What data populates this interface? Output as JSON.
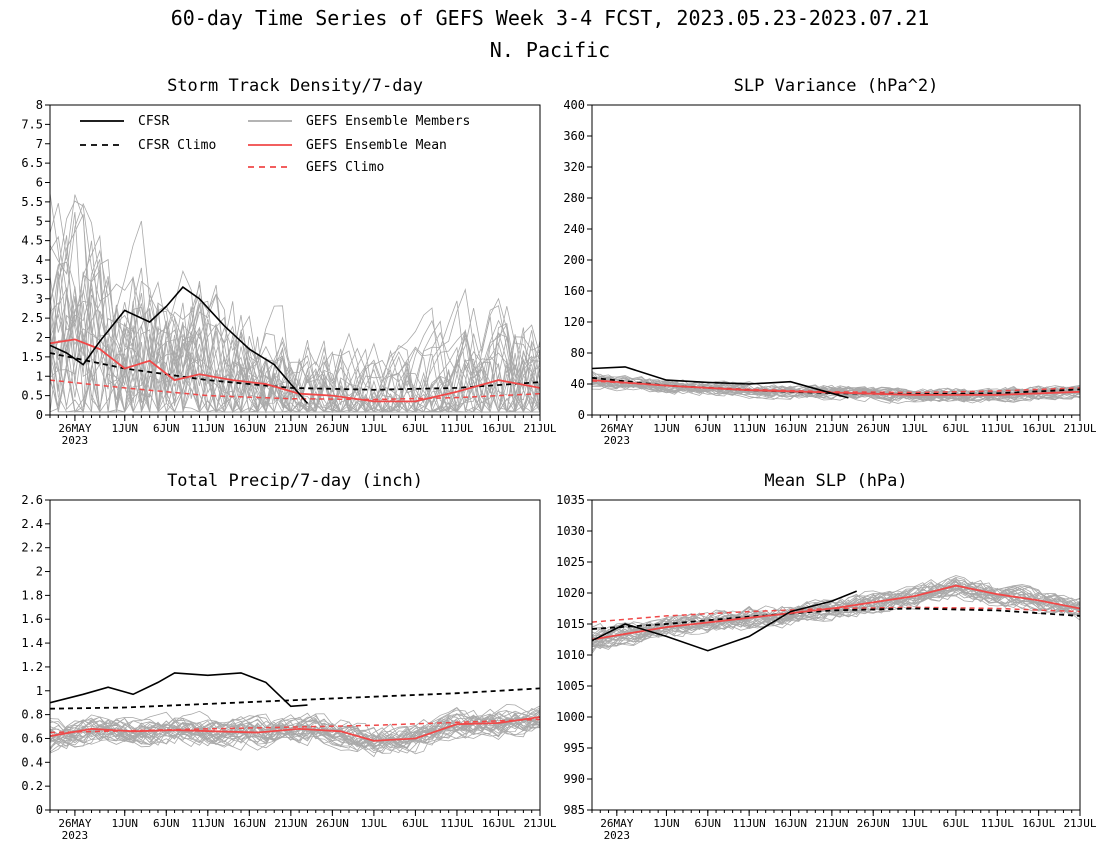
{
  "figure": {
    "title_line1": "60-day Time Series of GEFS Week 3-4 FCST, 2023.05.23-2023.07.21",
    "title_line2": "N. Pacific",
    "colors": {
      "obs": "#000000",
      "members": "#a9a9a9",
      "ens_mean": "#f04848"
    },
    "x_ticks": [
      "26MAY",
      "1JUN",
      "6JUN",
      "11JUN",
      "16JUN",
      "21JUN",
      "26JUN",
      "1JUL",
      "6JUL",
      "11JUL",
      "16JUL",
      "21JUL"
    ],
    "x_year_label": "2023",
    "x_range": [
      "2023-05-23",
      "2023-07-21"
    ],
    "legend": {
      "cfsr": "CFSR",
      "cfsr_climo": "CFSR Climo",
      "gefs_members": "GEFS Ensemble Members",
      "gefs_mean": "GEFS Ensemble Mean",
      "gefs_climo": "GEFS Climo"
    }
  },
  "chart_data": [
    {
      "type": "line",
      "title": "Storm Track Density/7-day",
      "ylim": [
        0,
        8
      ],
      "y_ticks": [
        "0",
        "0.5",
        "1",
        "1.5",
        "2",
        "2.5",
        "3",
        "3.5",
        "4",
        "4.5",
        "5",
        "5.5",
        "6",
        "6.5",
        "7",
        "7.5",
        "8"
      ],
      "legend_position": "top-left",
      "cfsr": {
        "x": [
          "2023-05-23",
          "2023-05-25",
          "2023-05-27",
          "2023-05-29",
          "2023-06-01",
          "2023-06-04",
          "2023-06-06",
          "2023-06-08",
          "2023-06-10",
          "2023-06-13",
          "2023-06-16",
          "2023-06-19",
          "2023-06-21",
          "2023-06-23"
        ],
        "y": [
          1.8,
          1.6,
          1.3,
          1.9,
          2.7,
          2.4,
          2.8,
          3.3,
          3.0,
          2.3,
          1.7,
          1.3,
          0.8,
          0.3
        ]
      },
      "cfsr_climo": {
        "x": [
          "2023-05-23",
          "2023-06-01",
          "2023-06-11",
          "2023-06-21",
          "2023-07-01",
          "2023-07-11",
          "2023-07-21"
        ],
        "y": [
          1.6,
          1.2,
          0.9,
          0.7,
          0.65,
          0.7,
          0.85
        ]
      },
      "gefs_mean": {
        "x": [
          "2023-05-23",
          "2023-05-26",
          "2023-05-29",
          "2023-06-01",
          "2023-06-04",
          "2023-06-07",
          "2023-06-10",
          "2023-06-14",
          "2023-06-18",
          "2023-06-22",
          "2023-06-26",
          "2023-07-01",
          "2023-07-06",
          "2023-07-11",
          "2023-07-16",
          "2023-07-21"
        ],
        "y": [
          1.85,
          1.95,
          1.7,
          1.2,
          1.4,
          0.9,
          1.05,
          0.9,
          0.8,
          0.55,
          0.5,
          0.35,
          0.35,
          0.6,
          0.9,
          0.7
        ]
      },
      "gefs_climo": {
        "x": [
          "2023-05-23",
          "2023-06-01",
          "2023-06-11",
          "2023-06-21",
          "2023-07-01",
          "2023-07-11",
          "2023-07-21"
        ],
        "y": [
          0.9,
          0.7,
          0.5,
          0.42,
          0.4,
          0.45,
          0.55
        ]
      }
    },
    {
      "type": "line",
      "title": "SLP Variance (hPa^2)",
      "ylim": [
        0,
        400
      ],
      "y_ticks": [
        "0",
        "40",
        "80",
        "120",
        "160",
        "200",
        "240",
        "280",
        "320",
        "360",
        "400"
      ],
      "cfsr": {
        "x": [
          "2023-05-23",
          "2023-05-27",
          "2023-06-01",
          "2023-06-06",
          "2023-06-11",
          "2023-06-16",
          "2023-06-21",
          "2023-06-23"
        ],
        "y": [
          60,
          62,
          45,
          42,
          40,
          43,
          28,
          22
        ]
      },
      "cfsr_climo": {
        "x": [
          "2023-05-23",
          "2023-06-01",
          "2023-06-11",
          "2023-06-21",
          "2023-07-01",
          "2023-07-11",
          "2023-07-21"
        ],
        "y": [
          48,
          38,
          32,
          28,
          27,
          28,
          33
        ]
      },
      "gefs_mean": {
        "x": [
          "2023-05-23",
          "2023-06-01",
          "2023-06-11",
          "2023-06-21",
          "2023-07-01",
          "2023-07-11",
          "2023-07-21"
        ],
        "y": [
          45,
          38,
          32,
          29,
          26,
          26,
          30
        ]
      },
      "gefs_climo": {
        "x": [
          "2023-05-23",
          "2023-06-01",
          "2023-06-11",
          "2023-06-21",
          "2023-07-01",
          "2023-07-11",
          "2023-07-21"
        ],
        "y": [
          44,
          38,
          33,
          30,
          29,
          31,
          35
        ]
      }
    },
    {
      "type": "line",
      "title": "Total Precip/7-day (inch)",
      "ylim": [
        0,
        2.6
      ],
      "y_ticks": [
        "0",
        "0.2",
        "0.4",
        "0.6",
        "0.8",
        "1",
        "1.2",
        "1.4",
        "1.6",
        "1.8",
        "2",
        "2.2",
        "2.4",
        "2.6"
      ],
      "cfsr": {
        "x": [
          "2023-05-23",
          "2023-05-27",
          "2023-05-30",
          "2023-06-02",
          "2023-06-05",
          "2023-06-07",
          "2023-06-11",
          "2023-06-15",
          "2023-06-18",
          "2023-06-21",
          "2023-06-23"
        ],
        "y": [
          0.9,
          0.97,
          1.03,
          0.97,
          1.07,
          1.15,
          1.13,
          1.15,
          1.07,
          0.87,
          0.88
        ]
      },
      "cfsr_climo": {
        "x": [
          "2023-05-23",
          "2023-06-01",
          "2023-06-11",
          "2023-06-21",
          "2023-07-01",
          "2023-07-11",
          "2023-07-21"
        ],
        "y": [
          0.85,
          0.86,
          0.89,
          0.92,
          0.95,
          0.98,
          1.02
        ]
      },
      "gefs_mean": {
        "x": [
          "2023-05-23",
          "2023-05-28",
          "2023-06-02",
          "2023-06-07",
          "2023-06-12",
          "2023-06-17",
          "2023-06-22",
          "2023-06-27",
          "2023-07-01",
          "2023-07-06",
          "2023-07-11",
          "2023-07-16",
          "2023-07-21"
        ],
        "y": [
          0.62,
          0.68,
          0.66,
          0.67,
          0.66,
          0.65,
          0.68,
          0.66,
          0.58,
          0.6,
          0.72,
          0.73,
          0.78
        ]
      },
      "gefs_climo": {
        "x": [
          "2023-05-23",
          "2023-06-11",
          "2023-07-01",
          "2023-07-21"
        ],
        "y": [
          0.65,
          0.68,
          0.71,
          0.76
        ]
      }
    },
    {
      "type": "line",
      "title": "Mean SLP (hPa)",
      "ylim": [
        985,
        1035
      ],
      "y_ticks": [
        "985",
        "990",
        "995",
        "1000",
        "1005",
        "1010",
        "1015",
        "1020",
        "1025",
        "1030",
        "1035"
      ],
      "cfsr": {
        "x": [
          "2023-05-23",
          "2023-05-27",
          "2023-06-01",
          "2023-06-06",
          "2023-06-11",
          "2023-06-16",
          "2023-06-21",
          "2023-06-24"
        ],
        "y": [
          1012.3,
          1015,
          1013,
          1010.7,
          1013,
          1017,
          1018.7,
          1020.3
        ]
      },
      "cfsr_climo": {
        "x": [
          "2023-05-23",
          "2023-06-01",
          "2023-06-11",
          "2023-06-21",
          "2023-07-01",
          "2023-07-11",
          "2023-07-21"
        ],
        "y": [
          1014.2,
          1015,
          1016.2,
          1017.2,
          1017.5,
          1017.2,
          1016.3
        ]
      },
      "gefs_mean": {
        "x": [
          "2023-05-23",
          "2023-06-01",
          "2023-06-11",
          "2023-06-21",
          "2023-07-01",
          "2023-07-06",
          "2023-07-11",
          "2023-07-16",
          "2023-07-21"
        ],
        "y": [
          1012.5,
          1014.5,
          1016,
          1017.5,
          1019.5,
          1021.2,
          1019.8,
          1018.8,
          1017.5
        ]
      },
      "gefs_climo": {
        "x": [
          "2023-05-23",
          "2023-06-01",
          "2023-06-11",
          "2023-06-21",
          "2023-07-01",
          "2023-07-11",
          "2023-07-21"
        ],
        "y": [
          1015.3,
          1016.3,
          1017,
          1017.5,
          1017.7,
          1017.5,
          1017
        ]
      }
    }
  ]
}
